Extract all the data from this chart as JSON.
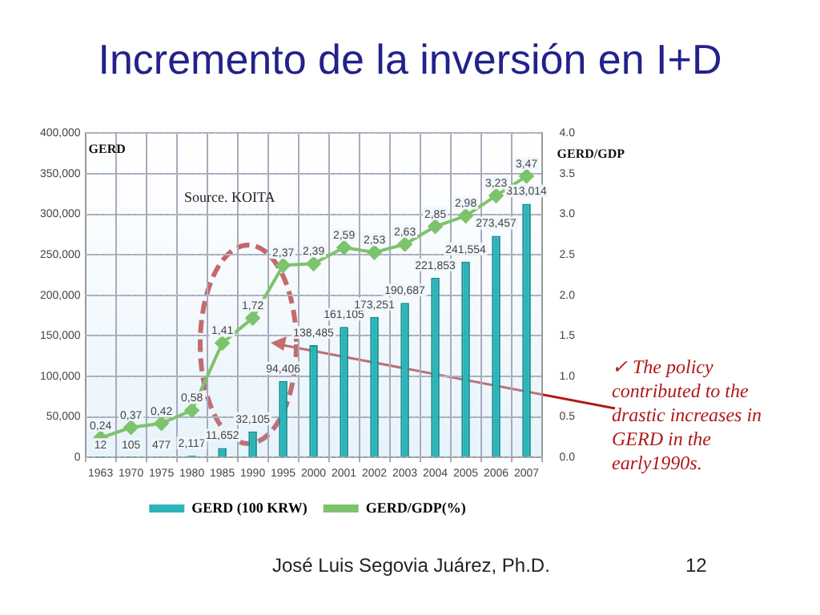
{
  "chart_data": {
    "type": "bar",
    "title": "Incremento de la inversión en I+D",
    "categories": [
      "1963",
      "1970",
      "1975",
      "1980",
      "1985",
      "1990",
      "1995",
      "2000",
      "2001",
      "2002",
      "2003",
      "2004",
      "2005",
      "2006",
      "2007"
    ],
    "series": [
      {
        "name": "GERD (100 KRW)",
        "color": "#2bb5b8",
        "values": [
          12,
          105,
          477,
          2117,
          11652,
          32105,
          94406,
          138485,
          161105,
          173251,
          190687,
          221853,
          241554,
          273457,
          313014
        ],
        "value_labels": [
          "12",
          "105",
          "477",
          "2,117",
          "11,652",
          "32,105",
          "94,406",
          "138,485",
          "161,105",
          "173,251",
          "190,687",
          "221,853",
          "241,554",
          "273,457",
          "313,014"
        ]
      },
      {
        "name": "GERD/GDP(%)",
        "type": "line",
        "axis": "y2",
        "color": "#7dc36b",
        "values": [
          0.24,
          0.37,
          0.42,
          0.58,
          1.41,
          1.72,
          2.37,
          2.39,
          2.59,
          2.53,
          2.63,
          2.85,
          2.98,
          3.23,
          3.47
        ],
        "value_labels": [
          "0,24",
          "0,37",
          "0,42",
          "0,58",
          "1,41",
          "1,72",
          "2,37",
          "2,39",
          "2,59",
          "2,53",
          "2,63",
          "2,85",
          "2,98",
          "3,23",
          "3,47"
        ]
      }
    ],
    "ylabel": "GERD",
    "y2label": "GERD/GDP",
    "ylim": [
      0,
      400000
    ],
    "yticks": [
      {
        "value": 0,
        "label": "0"
      },
      {
        "value": 50000,
        "label": "50,000"
      },
      {
        "value": 100000,
        "label": "100,000"
      },
      {
        "value": 150000,
        "label": "150,000"
      },
      {
        "value": 200000,
        "label": "200,000"
      },
      {
        "value": 250000,
        "label": "250,000"
      },
      {
        "value": 300000,
        "label": "300,000"
      },
      {
        "value": 350000,
        "label": "350,000"
      },
      {
        "value": 400000,
        "label": "400,000"
      }
    ],
    "y2lim": [
      0,
      4
    ],
    "y2ticks": [
      {
        "value": 0,
        "label": "0.0"
      },
      {
        "value": 0.5,
        "label": "0.5"
      },
      {
        "value": 1,
        "label": "1.0"
      },
      {
        "value": 1.5,
        "label": "1.5"
      },
      {
        "value": 2,
        "label": "2.0"
      },
      {
        "value": 2.5,
        "label": "2.5"
      },
      {
        "value": 3,
        "label": "3.0"
      },
      {
        "value": 3.5,
        "label": "3.5"
      },
      {
        "value": 4,
        "label": "4.0"
      }
    ],
    "grid": true,
    "legend": "bottom",
    "marker": "diamond",
    "line_style": "solid",
    "annotations": [
      "Source. KOITA",
      "✓ The policy contributed to the drastic increases in GERD  in the early1990s.",
      "José Luis Segovia Juárez, Ph.D.",
      "12"
    ]
  }
}
